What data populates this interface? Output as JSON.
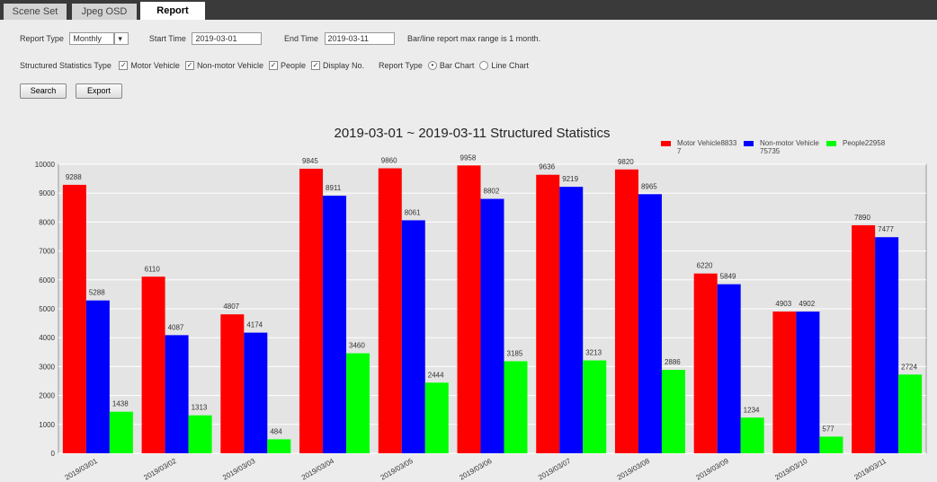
{
  "tabs": [
    "Scene Set",
    "Jpeg OSD",
    "Report"
  ],
  "active_tab": 2,
  "form": {
    "report_type_label": "Report Type",
    "report_type": "Monthly",
    "start_time_label": "Start Time",
    "start_time": "2019-03-01",
    "end_time_label": "End Time",
    "end_time": "2019-03-11",
    "note": "Bar/line report max range is 1 month.",
    "stats_type_label": "Structured Statistics Type",
    "checkboxes": [
      {
        "label": "Motor Vehicle",
        "checked": true
      },
      {
        "label": "Non-motor Vehicle",
        "checked": true
      },
      {
        "label": "People",
        "checked": true
      },
      {
        "label": "Display No.",
        "checked": true
      }
    ],
    "chart_type_label": "Report Type",
    "radios": [
      {
        "label": "Bar Chart",
        "checked": true
      },
      {
        "label": "Line Chart",
        "checked": false
      }
    ],
    "buttons": [
      "Search",
      "Export"
    ]
  },
  "chart_data": {
    "type": "bar",
    "title": "2019-03-01 ~ 2019-03-11 Structured Statistics",
    "categories": [
      "2019/03/01",
      "2019/03/02",
      "2019/03/03",
      "2019/03/04",
      "2019/03/05",
      "2019/03/06",
      "2019/03/07",
      "2019/03/08",
      "2019/03/09",
      "2019/03/10",
      "2019/03/11"
    ],
    "series": [
      {
        "name": "Motor Vehicle88337",
        "color": "#ff0000",
        "values": [
          9288,
          6110,
          4807,
          9845,
          9860,
          9958,
          9636,
          9820,
          6220,
          4903,
          7890
        ]
      },
      {
        "name": "Non-motor Vehicle75735",
        "color": "#0000ff",
        "values": [
          5288,
          4087,
          4174,
          8911,
          8061,
          8802,
          9219,
          8965,
          5849,
          4902,
          7477
        ]
      },
      {
        "name": "People22958",
        "color": "#00ff00",
        "values": [
          1438,
          1313,
          484,
          3460,
          2444,
          3185,
          3213,
          2886,
          1234,
          577,
          2724
        ]
      }
    ],
    "ylim": [
      0,
      10000
    ],
    "yticks": [
      0,
      1000,
      2000,
      3000,
      4000,
      5000,
      6000,
      7000,
      8000,
      9000,
      10000
    ],
    "grid": true,
    "show_values": true
  }
}
